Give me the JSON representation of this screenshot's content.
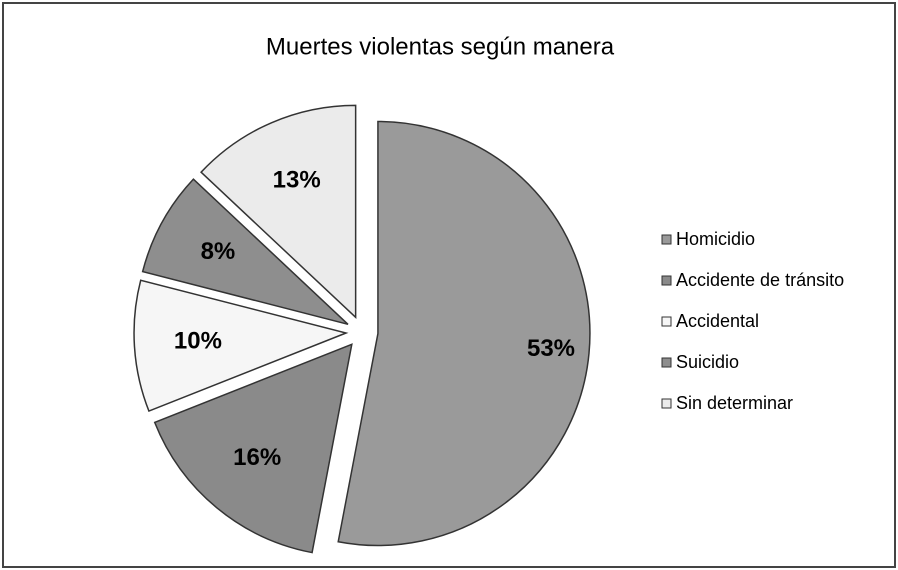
{
  "chart_data": {
    "type": "pie",
    "title": "Muertes violentas según manera",
    "categories": [
      "Homicidio",
      "Accidente de tránsito",
      "Accidental",
      "Suicidio",
      "Sin determinar"
    ],
    "values": [
      53,
      16,
      10,
      8,
      13
    ],
    "value_labels": [
      "53%",
      "16%",
      "10%",
      "8%",
      "13%"
    ],
    "colors": [
      "#9a9a9a",
      "#8a8a8a",
      "#f6f6f6",
      "#8e8e8e",
      "#ebebeb"
    ],
    "legend": "right"
  }
}
